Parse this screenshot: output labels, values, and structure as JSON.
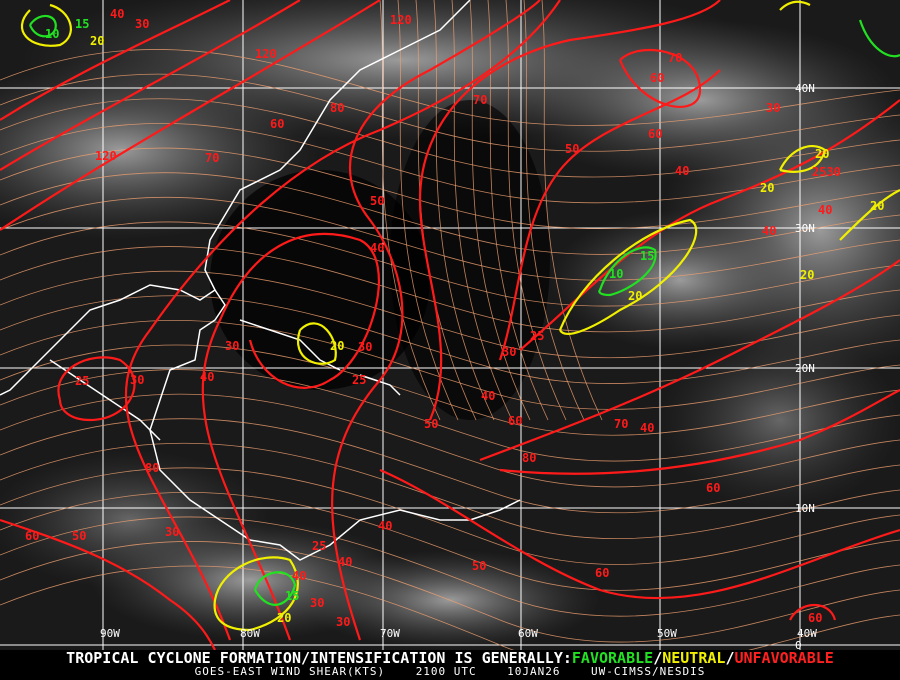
{
  "map": {
    "longitude_labels": [
      "90W",
      "80W",
      "70W",
      "60W",
      "50W",
      "40W"
    ],
    "latitude_labels": [
      "40N",
      "30N",
      "20N",
      "10N",
      "0"
    ],
    "contour_colors": {
      "favorable": "#22e022",
      "neutral": "#f0f000",
      "unfavorable": "#ff1a1a",
      "streamlines": "#f0a070"
    },
    "contour_labels": [
      "10",
      "15",
      "20",
      "30",
      "40",
      "120",
      "120",
      "80",
      "70",
      "60",
      "120",
      "70",
      "50",
      "40",
      "60",
      "70",
      "60",
      "50",
      "40",
      "30",
      "20",
      "20",
      "2530",
      "40",
      "20",
      "40",
      "20",
      "10",
      "15",
      "20",
      "25",
      "30",
      "20",
      "25",
      "30",
      "30",
      "25",
      "30",
      "40",
      "50",
      "40",
      "60",
      "70",
      "80",
      "60",
      "80",
      "40",
      "30",
      "60",
      "50",
      "40",
      "25",
      "30",
      "15",
      "20",
      "30",
      "60",
      "50",
      "40",
      "60",
      "40"
    ]
  },
  "footer": {
    "headline_prefix": "TROPICAL CYCLONE FORMATION/INTENSIFICATION IS GENERALLY:",
    "favorable": "FAVORABLE",
    "slash1": "/",
    "neutral": "NEUTRAL",
    "slash2": "/",
    "unfavorable": "UNFAVORABLE",
    "product": "GOES-EAST WIND SHEAR(KTS)",
    "time": "2100 UTC",
    "date": "10JAN26",
    "source": "UW-CIMSS/NESDIS"
  }
}
